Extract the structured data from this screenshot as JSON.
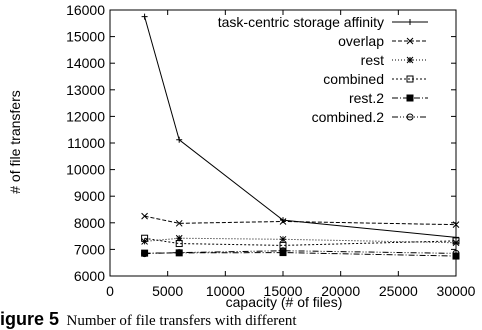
{
  "chart_data": {
    "type": "line",
    "xlabel": "capacity (# of files)",
    "ylabel": "# of file transfers",
    "xlim": [
      0,
      30000
    ],
    "ylim": [
      6000,
      16000
    ],
    "xticks": [
      0,
      5000,
      10000,
      15000,
      20000,
      25000,
      30000
    ],
    "yticks": [
      6000,
      7000,
      8000,
      9000,
      10000,
      11000,
      12000,
      13000,
      14000,
      15000,
      16000
    ],
    "grid": false,
    "legend_position": "top-right",
    "x": [
      3000,
      6000,
      15000,
      30000
    ],
    "series": [
      {
        "name": "task-centric storage affinity",
        "values": [
          15750,
          11120,
          8100,
          7450
        ],
        "marker": "plus",
        "dash": ""
      },
      {
        "name": "overlap",
        "values": [
          8250,
          7980,
          8050,
          7930
        ],
        "marker": "cross",
        "dash": "4,2"
      },
      {
        "name": "rest",
        "values": [
          7300,
          7420,
          7380,
          7250
        ],
        "marker": "asterisk",
        "dash": "1,2"
      },
      {
        "name": "combined",
        "values": [
          7420,
          7220,
          7150,
          7320
        ],
        "marker": "square",
        "dash": "2,2"
      },
      {
        "name": "rest.2",
        "values": [
          6860,
          6870,
          6880,
          6750
        ],
        "marker": "filled-square",
        "dash": "6,2,1,2"
      },
      {
        "name": "combined.2",
        "values": [
          6840,
          6880,
          6950,
          6850
        ],
        "marker": "circle",
        "dash": "6,2,1,2,1,2"
      }
    ]
  },
  "caption": {
    "label": "igure 5",
    "text": "Number of file transfers with different"
  }
}
